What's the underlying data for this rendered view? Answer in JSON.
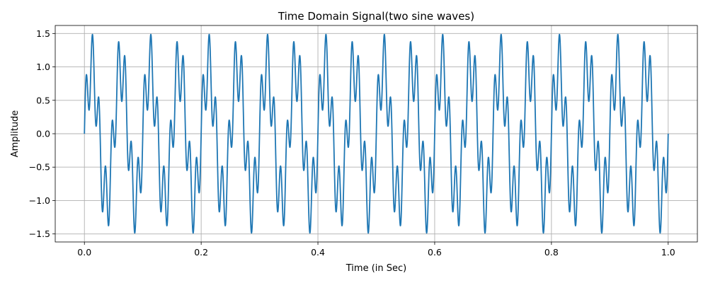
{
  "chart_data": {
    "type": "line",
    "title": "Time Domain Signal(two sine waves)",
    "xlabel": "Time (in Sec)",
    "ylabel": "Amplitude",
    "xlim": [
      -0.05,
      1.05
    ],
    "ylim": [
      -1.62,
      1.62
    ],
    "x_ticks": [
      0.0,
      0.2,
      0.4,
      0.6,
      0.8,
      1.0
    ],
    "x_tick_labels": [
      "0.0",
      "0.2",
      "0.4",
      "0.6",
      "0.8",
      "1.0"
    ],
    "y_ticks": [
      -1.5,
      -1.0,
      -0.5,
      0.0,
      0.5,
      1.0,
      1.5
    ],
    "y_tick_labels": [
      "−1.5",
      "−1.0",
      "−0.5",
      "0.0",
      "0.5",
      "1.0",
      "1.5"
    ],
    "grid": true,
    "series": [
      {
        "formula": "sin(2*pi*20*t) + 0.5*sin(2*pi*90*t)",
        "t_range": [
          0.0,
          1.0
        ],
        "color": "#1f77b4",
        "components": [
          {
            "frequency_hz": 20,
            "amplitude": 1.0
          },
          {
            "frequency_hz": 90,
            "amplitude": 0.5
          }
        ]
      }
    ]
  }
}
